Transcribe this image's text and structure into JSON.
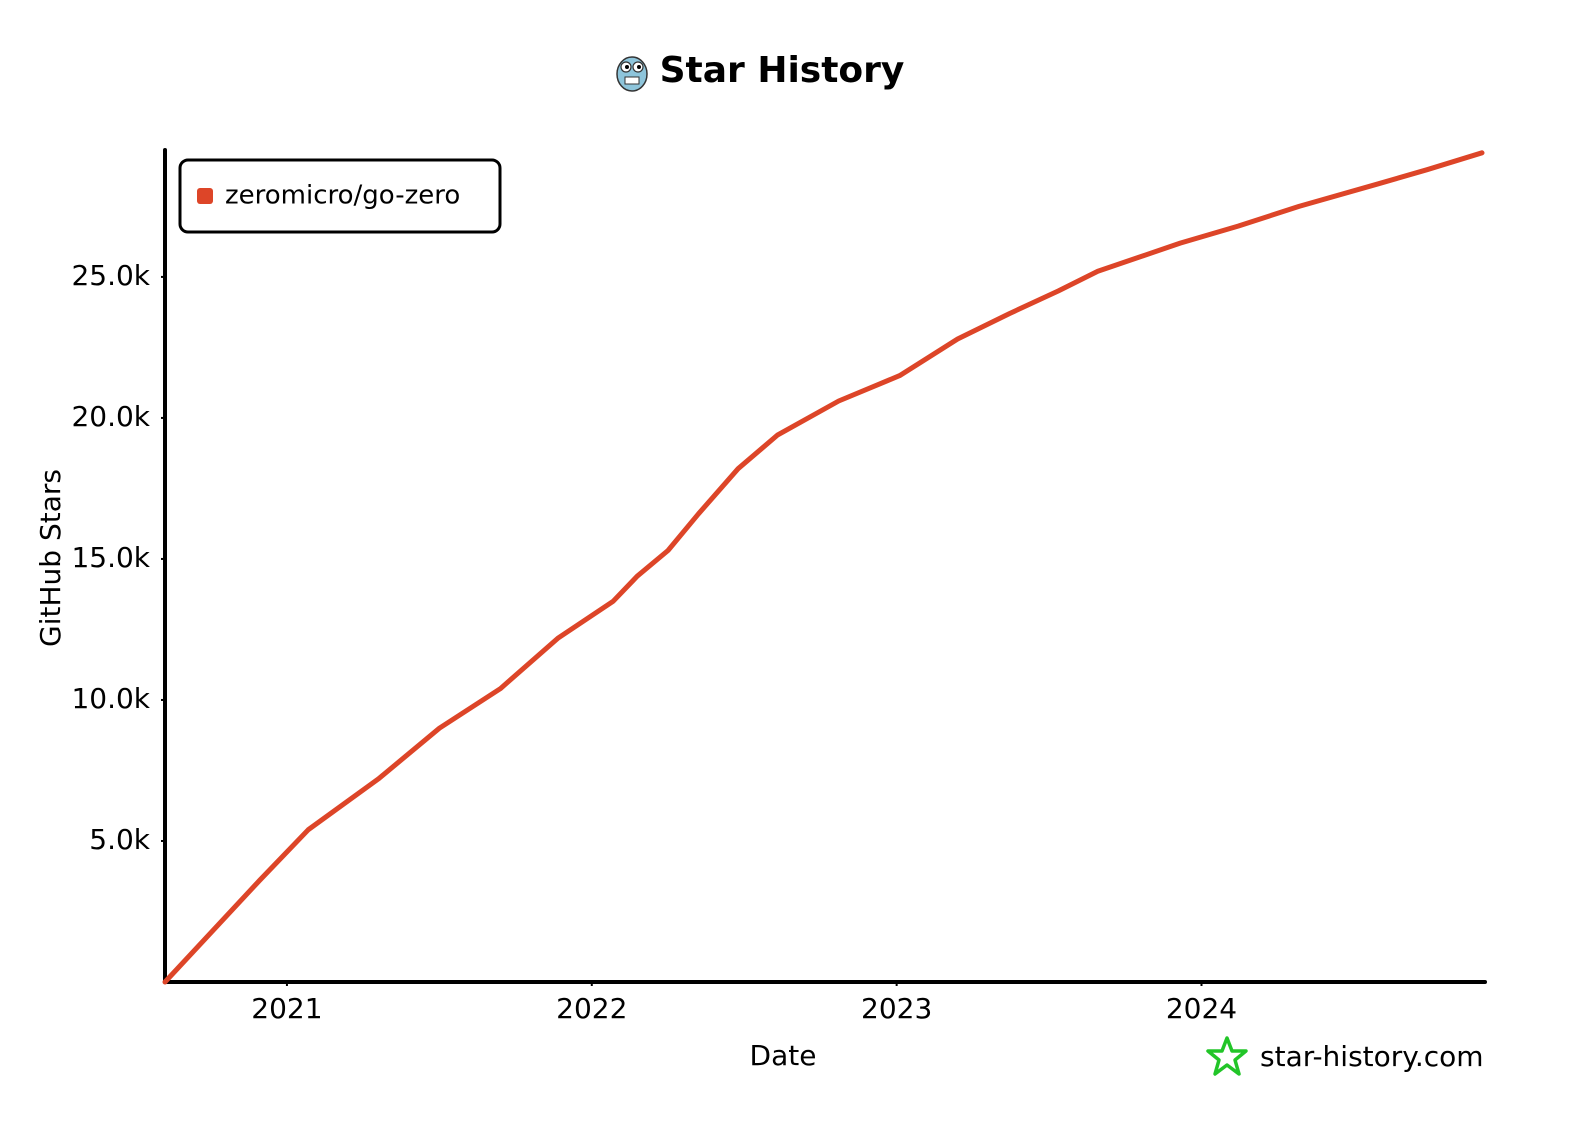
{
  "chart_data": {
    "type": "line",
    "title": "Star History",
    "xlabel": "Date",
    "ylabel": "GitHub Stars",
    "watermark": "star-history.com",
    "x": [
      2020.6,
      2020.91,
      2021.07,
      2021.3,
      2021.5,
      2021.7,
      2021.89,
      2022.07,
      2022.15,
      2022.25,
      2022.35,
      2022.48,
      2022.61,
      2022.81,
      2023.01,
      2023.2,
      2023.37,
      2023.53,
      2023.66,
      2023.93,
      2024.12,
      2024.32,
      2024.58,
      2024.74,
      2024.92
    ],
    "series": [
      {
        "name": "zeromicro/go-zero",
        "color": "#dd4528",
        "values": [
          0,
          3600,
          5400,
          7200,
          9000,
          10400,
          12200,
          13500,
          14400,
          15300,
          16600,
          18200,
          19400,
          20600,
          21500,
          22800,
          23700,
          24500,
          25200,
          26200,
          26800,
          27500,
          28300,
          28800,
          29400
        ]
      }
    ],
    "xlim": [
      2020.6,
      2024.93
    ],
    "xticks": [
      2021,
      2022,
      2023,
      2024
    ],
    "ylim": [
      0,
      29500
    ],
    "yticks": [
      {
        "value": 5000,
        "label": "5.0k"
      },
      {
        "value": 10000,
        "label": "10.0k"
      },
      {
        "value": 15000,
        "label": "15.0k"
      },
      {
        "value": 20000,
        "label": "20.0k"
      },
      {
        "value": 25000,
        "label": "25.0k"
      }
    ],
    "grid": false,
    "legend": "upper left"
  }
}
